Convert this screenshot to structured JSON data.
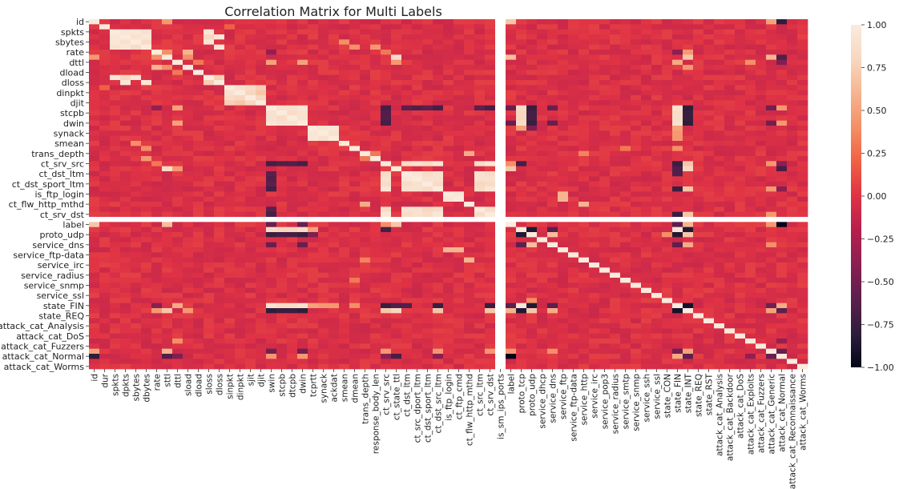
{
  "chart_data": {
    "type": "heatmap",
    "title": "Correlation Matrix for Multi Labels",
    "xlabel": "",
    "ylabel": "",
    "variables": [
      "id",
      "dur",
      "spkts",
      "dpkts",
      "sbytes",
      "dbytes",
      "rate",
      "sttl",
      "dttl",
      "sload",
      "dload",
      "sloss",
      "dloss",
      "sinpkt",
      "dinpkt",
      "sjit",
      "djit",
      "swin",
      "stcpb",
      "dtcpb",
      "dwin",
      "tcprtt",
      "synack",
      "ackdat",
      "smean",
      "dmean",
      "trans_depth",
      "response_body_len",
      "ct_srv_src",
      "ct_state_ttl",
      "ct_dst_ltm",
      "ct_src_dport_ltm",
      "ct_dst_sport_ltm",
      "ct_dst_src_ltm",
      "is_ftp_login",
      "ct_ftp_cmd",
      "ct_flw_http_mthd",
      "ct_src_ltm",
      "ct_srv_dst",
      "is_sm_ips_ports",
      "label",
      "proto_tcp",
      "proto_udp",
      "service_dhcp",
      "service_dns",
      "service_ftp",
      "service_ftp-data",
      "service_http",
      "service_irc",
      "service_pop3",
      "service_radius",
      "service_smtp",
      "service_snmp",
      "service_ssh",
      "service_ssl",
      "state_CON",
      "state_FIN",
      "state_INT",
      "state_REQ",
      "state_RST",
      "attack_cat_Analysis",
      "attack_cat_Backdoor",
      "attack_cat_DoS",
      "attack_cat_Exploits",
      "attack_cat_Fuzzers",
      "attack_cat_Generic",
      "attack_cat_Normal",
      "attack_cat_Reconnaissance",
      "attack_cat_Worms"
    ],
    "y_tick_labels": [
      "id",
      "spkts",
      "sbytes",
      "rate",
      "dttl",
      "dload",
      "dloss",
      "dinpkt",
      "djit",
      "stcpb",
      "dwin",
      "synack",
      "smean",
      "trans_depth",
      "ct_srv_src",
      "ct_dst_ltm",
      "ct_dst_sport_ltm",
      "is_ftp_login",
      "ct_flw_http_mthd",
      "ct_srv_dst",
      "label",
      "proto_udp",
      "service_dns",
      "service_ftp-data",
      "service_irc",
      "service_radius",
      "service_snmp",
      "service_ssl",
      "state_FIN",
      "state_REQ",
      "attack_cat_Analysis",
      "attack_cat_DoS",
      "attack_cat_Fuzzers",
      "attack_cat_Normal",
      "attack_cat_Worms"
    ],
    "x_tick_labels": [
      "id",
      "dur",
      "spkts",
      "dpkts",
      "sbytes",
      "dbytes",
      "rate",
      "sttl",
      "dttl",
      "sload",
      "dload",
      "sloss",
      "dloss",
      "sinpkt",
      "dinpkt",
      "sjit",
      "djit",
      "swin",
      "stcpb",
      "dtcpb",
      "dwin",
      "tcprtt",
      "synack",
      "ackdat",
      "smean",
      "dmean",
      "trans_depth",
      "response_body_len",
      "ct_srv_src",
      "ct_state_ttl",
      "ct_dst_ltm",
      "ct_src_dport_ltm",
      "ct_dst_sport_ltm",
      "ct_dst_src_ltm",
      "is_ftp_login",
      "ct_ftp_cmd",
      "ct_flw_http_mthd",
      "ct_src_ltm",
      "ct_srv_dst",
      "is_sm_ips_ports",
      "label",
      "proto_tcp",
      "proto_udp",
      "service_dhcp",
      "service_dns",
      "service_ftp",
      "service_ftp-data",
      "service_http",
      "service_irc",
      "service_pop3",
      "service_radius",
      "service_smtp",
      "service_snmp",
      "service_ssh",
      "service_ssl",
      "state_CON",
      "state_FIN",
      "state_INT",
      "state_REQ",
      "state_RST",
      "attack_cat_Analysis",
      "attack_cat_Backdoor",
      "attack_cat_DoS",
      "attack_cat_Exploits",
      "attack_cat_Fuzzers",
      "attack_cat_Generic",
      "attack_cat_Normal",
      "attack_cat_Reconnaissance",
      "attack_cat_Worms"
    ],
    "blank_variable": "is_sm_ips_ports",
    "value_range": [
      -1,
      1
    ],
    "colorbar": {
      "ticks": [
        1.0,
        0.75,
        0.5,
        0.25,
        0.0,
        -0.25,
        -0.5,
        -0.75,
        -1.0
      ],
      "tick_labels": [
        "1.00",
        "0.75",
        "0.50",
        "0.25",
        "0.00",
        "−0.25",
        "−0.50",
        "−0.75",
        "−1.00"
      ],
      "colormap": "rocket",
      "stops": [
        "#03051a",
        "#2e1e3b",
        "#5c1f4e",
        "#8a1f52",
        "#b61f4e",
        "#df3245",
        "#f06043",
        "#f48f66",
        "#f6b48f",
        "#f8d7c1",
        "#faebdd"
      ]
    },
    "diagonal_value": 1.0,
    "strong_correlations": [
      {
        "a": "spkts",
        "b": "dpkts",
        "value": 0.95
      },
      {
        "a": "spkts",
        "b": "sbytes",
        "value": 0.95
      },
      {
        "a": "spkts",
        "b": "dbytes",
        "value": 0.9
      },
      {
        "a": "dpkts",
        "b": "dbytes",
        "value": 0.95
      },
      {
        "a": "dpkts",
        "b": "sbytes",
        "value": 0.9
      },
      {
        "a": "sbytes",
        "b": "dbytes",
        "value": 0.85
      },
      {
        "a": "spkts",
        "b": "sloss",
        "value": 0.95
      },
      {
        "a": "dpkts",
        "b": "dloss",
        "value": 0.95
      },
      {
        "a": "sbytes",
        "b": "sloss",
        "value": 0.95
      },
      {
        "a": "dbytes",
        "b": "dloss",
        "value": 0.95
      },
      {
        "a": "sloss",
        "b": "dloss",
        "value": 0.75
      },
      {
        "a": "dpkts",
        "b": "sloss",
        "value": 0.8
      },
      {
        "a": "sinpkt",
        "b": "dinpkt",
        "value": 0.9
      },
      {
        "a": "sjit",
        "b": "djit",
        "value": 0.8
      },
      {
        "a": "sinpkt",
        "b": "sjit",
        "value": 0.85
      },
      {
        "a": "dinpkt",
        "b": "sjit",
        "value": 0.8
      },
      {
        "a": "sinpkt",
        "b": "djit",
        "value": 0.75
      },
      {
        "a": "dinpkt",
        "b": "djit",
        "value": 0.7
      },
      {
        "a": "swin",
        "b": "dwin",
        "value": 0.95
      },
      {
        "a": "swin",
        "b": "stcpb",
        "value": 0.9
      },
      {
        "a": "swin",
        "b": "dtcpb",
        "value": 0.9
      },
      {
        "a": "stcpb",
        "b": "dtcpb",
        "value": 0.85
      },
      {
        "a": "dwin",
        "b": "stcpb",
        "value": 0.9
      },
      {
        "a": "dwin",
        "b": "dtcpb",
        "value": 0.9
      },
      {
        "a": "tcprtt",
        "b": "synack",
        "value": 0.95
      },
      {
        "a": "tcprtt",
        "b": "ackdat",
        "value": 0.95
      },
      {
        "a": "synack",
        "b": "ackdat",
        "value": 0.9
      },
      {
        "a": "ct_srv_src",
        "b": "ct_dst_ltm",
        "value": 0.85
      },
      {
        "a": "ct_srv_src",
        "b": "ct_src_dport_ltm",
        "value": 0.9
      },
      {
        "a": "ct_srv_src",
        "b": "ct_dst_sport_ltm",
        "value": 0.85
      },
      {
        "a": "ct_srv_src",
        "b": "ct_dst_src_ltm",
        "value": 0.95
      },
      {
        "a": "ct_srv_src",
        "b": "ct_src_ltm",
        "value": 0.85
      },
      {
        "a": "ct_srv_src",
        "b": "ct_srv_dst",
        "value": 0.95
      },
      {
        "a": "ct_dst_ltm",
        "b": "ct_src_dport_ltm",
        "value": 0.95
      },
      {
        "a": "ct_dst_ltm",
        "b": "ct_dst_sport_ltm",
        "value": 0.85
      },
      {
        "a": "ct_dst_ltm",
        "b": "ct_dst_src_ltm",
        "value": 0.9
      },
      {
        "a": "ct_dst_ltm",
        "b": "ct_src_ltm",
        "value": 0.9
      },
      {
        "a": "ct_dst_ltm",
        "b": "ct_srv_dst",
        "value": 0.85
      },
      {
        "a": "ct_src_dport_ltm",
        "b": "ct_dst_sport_ltm",
        "value": 0.9
      },
      {
        "a": "ct_src_dport_ltm",
        "b": "ct_dst_src_ltm",
        "value": 0.9
      },
      {
        "a": "ct_src_dport_ltm",
        "b": "ct_src_ltm",
        "value": 0.9
      },
      {
        "a": "ct_src_dport_ltm",
        "b": "ct_srv_dst",
        "value": 0.9
      },
      {
        "a": "ct_dst_sport_ltm",
        "b": "ct_dst_src_ltm",
        "value": 0.85
      },
      {
        "a": "ct_dst_sport_ltm",
        "b": "ct_src_ltm",
        "value": 0.8
      },
      {
        "a": "ct_dst_sport_ltm",
        "b": "ct_srv_dst",
        "value": 0.85
      },
      {
        "a": "ct_dst_src_ltm",
        "b": "ct_src_ltm",
        "value": 0.85
      },
      {
        "a": "ct_dst_src_ltm",
        "b": "ct_srv_dst",
        "value": 0.95
      },
      {
        "a": "ct_src_ltm",
        "b": "ct_srv_dst",
        "value": 0.85
      },
      {
        "a": "is_ftp_login",
        "b": "ct_ftp_cmd",
        "value": 0.95
      },
      {
        "a": "ct_flw_http_mthd",
        "b": "trans_depth",
        "value": 0.55
      },
      {
        "a": "ct_flw_http_mthd",
        "b": "service_http",
        "value": 0.6
      },
      {
        "a": "sttl",
        "b": "ct_state_ttl",
        "value": 0.85
      },
      {
        "a": "sttl",
        "b": "label",
        "value": 0.65
      },
      {
        "a": "sttl",
        "b": "state_INT",
        "value": 0.7
      },
      {
        "a": "sttl",
        "b": "attack_cat_Generic",
        "value": 0.6
      },
      {
        "a": "rate",
        "b": "state_INT",
        "value": 0.45
      },
      {
        "a": "ct_state_ttl",
        "b": "label",
        "value": 0.7
      },
      {
        "a": "ct_state_ttl",
        "b": "state_INT",
        "value": 0.8
      },
      {
        "a": "ct_state_ttl",
        "b": "attack_cat_Normal",
        "value": -0.7
      },
      {
        "a": "label",
        "b": "attack_cat_Normal",
        "value": -1.0
      },
      {
        "a": "label",
        "b": "attack_cat_Generic",
        "value": 0.45
      },
      {
        "a": "label",
        "b": "state_INT",
        "value": 0.6
      },
      {
        "a": "label",
        "b": "state_FIN",
        "value": -0.6
      },
      {
        "a": "sttl",
        "b": "attack_cat_Normal",
        "value": -0.65
      },
      {
        "a": "id",
        "b": "attack_cat_Normal",
        "value": -0.8
      },
      {
        "a": "id",
        "b": "label",
        "value": 0.7
      },
      {
        "a": "id",
        "b": "sttl",
        "value": 0.45
      },
      {
        "a": "id",
        "b": "attack_cat_Generic",
        "value": 0.5
      },
      {
        "a": "proto_tcp",
        "b": "proto_udp",
        "value": -0.85
      },
      {
        "a": "proto_tcp",
        "b": "state_FIN",
        "value": 0.95
      },
      {
        "a": "proto_tcp",
        "b": "state_INT",
        "value": -0.85
      },
      {
        "a": "proto_tcp",
        "b": "swin",
        "value": 0.85
      },
      {
        "a": "proto_tcp",
        "b": "dwin",
        "value": 0.85
      },
      {
        "a": "proto_tcp",
        "b": "stcpb",
        "value": 0.8
      },
      {
        "a": "proto_tcp",
        "b": "dtcpb",
        "value": 0.8
      },
      {
        "a": "proto_tcp",
        "b": "service_dns",
        "value": -0.6
      },
      {
        "a": "proto_tcp",
        "b": "tcprtt",
        "value": 0.5
      },
      {
        "a": "proto_udp",
        "b": "state_INT",
        "value": 0.7
      },
      {
        "a": "proto_udp",
        "b": "state_CON",
        "value": 0.4
      },
      {
        "a": "proto_udp",
        "b": "state_FIN",
        "value": -0.85
      },
      {
        "a": "proto_udp",
        "b": "swin",
        "value": -0.75
      },
      {
        "a": "proto_udp",
        "b": "dwin",
        "value": -0.75
      },
      {
        "a": "proto_udp",
        "b": "service_dns",
        "value": 0.65
      },
      {
        "a": "proto_udp",
        "b": "stcpb",
        "value": -0.7
      },
      {
        "a": "proto_udp",
        "b": "dtcpb",
        "value": -0.7
      },
      {
        "a": "service_dns",
        "b": "state_INT",
        "value": 0.55
      },
      {
        "a": "service_dns",
        "b": "state_FIN",
        "value": -0.6
      },
      {
        "a": "service_dns",
        "b": "swin",
        "value": -0.55
      },
      {
        "a": "service_dns",
        "b": "dwin",
        "value": -0.55
      },
      {
        "a": "service_dns",
        "b": "attack_cat_Generic",
        "value": 0.4
      },
      {
        "a": "state_FIN",
        "b": "state_INT",
        "value": -0.9
      },
      {
        "a": "state_FIN",
        "b": "swin",
        "value": 0.9
      },
      {
        "a": "state_FIN",
        "b": "dwin",
        "value": 0.9
      },
      {
        "a": "state_FIN",
        "b": "stcpb",
        "value": 0.85
      },
      {
        "a": "state_FIN",
        "b": "dtcpb",
        "value": 0.85
      },
      {
        "a": "state_FIN",
        "b": "ct_state_ttl",
        "value": -0.65
      },
      {
        "a": "state_INT",
        "b": "swin",
        "value": -0.8
      },
      {
        "a": "state_INT",
        "b": "dwin",
        "value": -0.8
      },
      {
        "a": "state_INT",
        "b": "stcpb",
        "value": -0.75
      },
      {
        "a": "state_INT",
        "b": "dtcpb",
        "value": -0.75
      },
      {
        "a": "state_INT",
        "b": "attack_cat_Normal",
        "value": -0.6
      },
      {
        "a": "state_INT",
        "b": "attack_cat_Generic",
        "value": 0.5
      },
      {
        "a": "attack_cat_Normal",
        "b": "attack_cat_Generic",
        "value": -0.55
      },
      {
        "a": "attack_cat_Normal",
        "b": "attack_cat_Exploits",
        "value": -0.35
      },
      {
        "a": "attack_cat_Normal",
        "b": "swin",
        "value": 0.45
      },
      {
        "a": "attack_cat_Normal",
        "b": "dwin",
        "value": 0.45
      },
      {
        "a": "attack_cat_Normal",
        "b": "state_FIN",
        "value": 0.55
      },
      {
        "a": "attack_cat_Normal",
        "b": "ct_srv_src",
        "value": -0.4
      },
      {
        "a": "attack_cat_Normal",
        "b": "ct_dst_src_ltm",
        "value": -0.4
      },
      {
        "a": "attack_cat_Normal",
        "b": "dttl",
        "value": -0.45
      },
      {
        "a": "attack_cat_Generic",
        "b": "ct_srv_src",
        "value": 0.45
      },
      {
        "a": "attack_cat_Generic",
        "b": "ct_dst_src_ltm",
        "value": 0.45
      },
      {
        "a": "attack_cat_Generic",
        "b": "ct_srv_dst",
        "value": 0.45
      },
      {
        "a": "attack_cat_Generic",
        "b": "swin",
        "value": -0.5
      },
      {
        "a": "attack_cat_Generic",
        "b": "dwin",
        "value": -0.5
      },
      {
        "a": "attack_cat_Generic",
        "b": "state_FIN",
        "value": -0.5
      },
      {
        "a": "dttl",
        "b": "swin",
        "value": 0.5
      },
      {
        "a": "dttl",
        "b": "dwin",
        "value": 0.5
      },
      {
        "a": "dttl",
        "b": "state_FIN",
        "value": 0.55
      },
      {
        "a": "dttl",
        "b": "ct_state_ttl",
        "value": 0.45
      },
      {
        "a": "dttl",
        "b": "attack_cat_Exploits",
        "value": 0.4
      },
      {
        "a": "rate",
        "b": "sttl",
        "value": 0.4
      },
      {
        "a": "rate",
        "b": "ct_srv_src",
        "value": 0.3
      },
      {
        "a": "rate",
        "b": "swin",
        "value": -0.35
      },
      {
        "a": "rate",
        "b": "state_FIN",
        "value": -0.4
      },
      {
        "a": "ct_srv_src",
        "b": "swin",
        "value": -0.7
      },
      {
        "a": "ct_srv_src",
        "b": "dwin",
        "value": -0.7
      },
      {
        "a": "ct_srv_src",
        "b": "stcpb",
        "value": -0.65
      },
      {
        "a": "ct_srv_src",
        "b": "dtcpb",
        "value": -0.65
      },
      {
        "a": "ct_srv_src",
        "b": "state_FIN",
        "value": -0.75
      },
      {
        "a": "ct_srv_src",
        "b": "proto_tcp",
        "value": -0.7
      },
      {
        "a": "ct_srv_src",
        "b": "state_INT",
        "value": 0.7
      },
      {
        "a": "ct_dst_ltm",
        "b": "swin",
        "value": -0.6
      },
      {
        "a": "ct_dst_ltm",
        "b": "state_FIN",
        "value": -0.65
      },
      {
        "a": "ct_srv_dst",
        "b": "swin",
        "value": -0.7
      },
      {
        "a": "ct_srv_dst",
        "b": "state_FIN",
        "value": -0.75
      },
      {
        "a": "ct_srv_dst",
        "b": "state_INT",
        "value": 0.7
      },
      {
        "a": "ct_dst_src_ltm",
        "b": "swin",
        "value": -0.7
      },
      {
        "a": "ct_dst_src_ltm",
        "b": "state_FIN",
        "value": -0.75
      },
      {
        "a": "ct_dst_src_ltm",
        "b": "state_INT",
        "value": 0.7
      },
      {
        "a": "ct_src_dport_ltm",
        "b": "swin",
        "value": -0.65
      },
      {
        "a": "ct_dst_sport_ltm",
        "b": "swin",
        "value": -0.6
      },
      {
        "a": "ct_src_ltm",
        "b": "swin",
        "value": -0.6
      },
      {
        "a": "sload",
        "b": "state_INT",
        "value": 0.45
      },
      {
        "a": "sload",
        "b": "rate",
        "value": 0.6
      },
      {
        "a": "sload",
        "b": "sttl",
        "value": 0.4
      },
      {
        "a": "label",
        "b": "swin",
        "value": -0.55
      },
      {
        "a": "label",
        "b": "dwin",
        "value": -0.55
      },
      {
        "a": "label",
        "b": "ct_srv_src",
        "value": 0.4
      },
      {
        "a": "tcprtt",
        "b": "state_FIN",
        "value": 0.5
      },
      {
        "a": "synack",
        "b": "state_FIN",
        "value": 0.45
      },
      {
        "a": "ackdat",
        "b": "state_FIN",
        "value": 0.45
      },
      {
        "a": "tcprtt",
        "b": "proto_udp",
        "value": -0.45
      },
      {
        "a": "dload",
        "b": "dttl",
        "value": 0.3
      },
      {
        "a": "dmean",
        "b": "dbytes",
        "value": 0.4
      },
      {
        "a": "smean",
        "b": "sbytes",
        "value": 0.4
      },
      {
        "a": "dmean",
        "b": "state_FIN",
        "value": 0.4
      },
      {
        "a": "response_body_len",
        "b": "dbytes",
        "value": 0.45
      },
      {
        "a": "response_body_len",
        "b": "trans_depth",
        "value": 0.3
      },
      {
        "a": "service_http",
        "b": "trans_depth",
        "value": 0.35
      },
      {
        "a": "service_ftp",
        "b": "is_ftp_login",
        "value": 0.6
      },
      {
        "a": "service_ftp",
        "b": "ct_ftp_cmd",
        "value": 0.6
      },
      {
        "a": "service_smtp",
        "b": "dmean",
        "value": 0.3
      },
      {
        "a": "dttl",
        "b": "attack_cat_Normal",
        "value": -0.45
      },
      {
        "a": "dur",
        "b": "sinpkt",
        "value": 0.2
      }
    ]
  }
}
